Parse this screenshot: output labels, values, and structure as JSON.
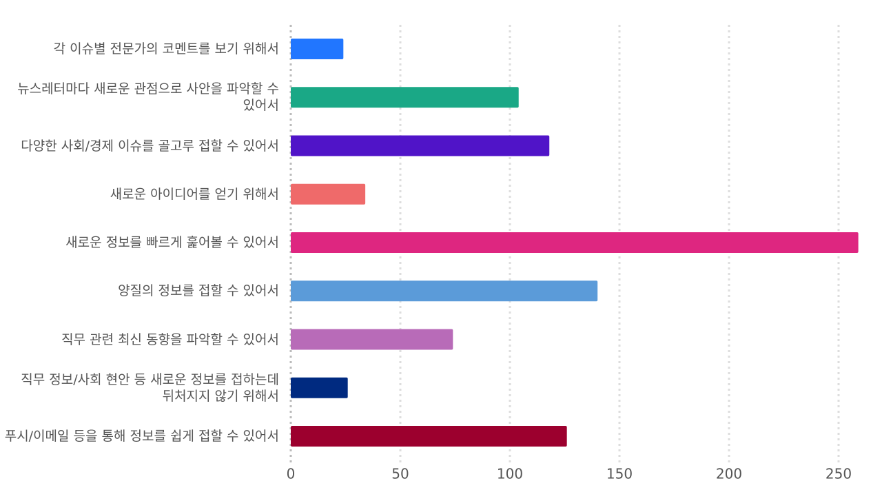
{
  "chart_data": {
    "type": "barh",
    "categories": [
      "각 이슈별 전문가의 코멘트를 보기 위해서",
      "뉴스레터마다 새로운 관점으로 사안을 파악할 수 있어서",
      "다양한 사회/경제 이슈를 골고루 접할 수 있어서",
      "새로운 아이디어를 얻기 위해서",
      "새로운 정보를 빠르게 훑어볼 수 있어서",
      "양질의 정보를 접할 수 있어서",
      "직무 관련 최신 동향을 파악할 수 있어서",
      "직무 정보/사회 현안 등 새로운 정보를 접하는데 뒤처지지 않기 위해서",
      "푸시/이메일 등을 통해 정보를 쉽게 접할 수 있어서"
    ],
    "values": [
      24,
      104,
      118,
      34,
      259,
      140,
      74,
      26,
      126
    ],
    "colors": [
      "#2176ff",
      "#1aa886",
      "#5014c8",
      "#ef6a6a",
      "#de2680",
      "#5b9bd9",
      "#b86bb8",
      "#002a80",
      "#9c002e"
    ],
    "xlim": [
      0,
      260
    ],
    "xticks": [
      0,
      50,
      100,
      150,
      200,
      250
    ],
    "grid": true
  }
}
